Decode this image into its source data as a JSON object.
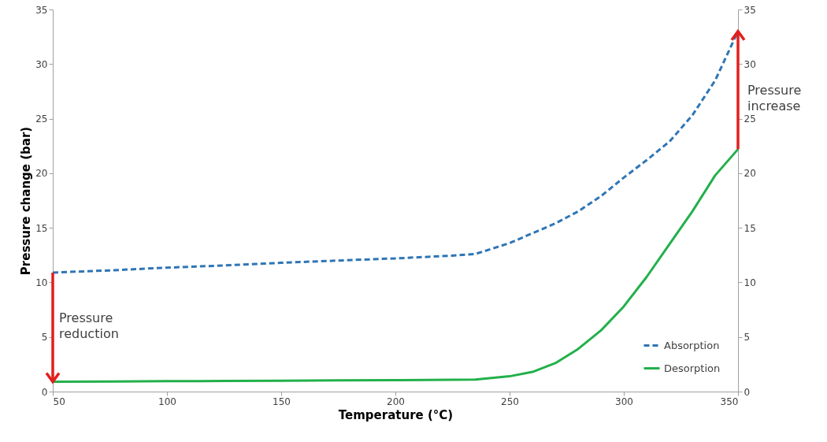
{
  "chart_data": {
    "type": "line",
    "xlabel": "Temperature (°C)",
    "ylabel": "Pressure change (bar)",
    "x": [
      50,
      75,
      100,
      125,
      150,
      175,
      200,
      225,
      235,
      250,
      260,
      270,
      280,
      290,
      300,
      310,
      320,
      330,
      340,
      350
    ],
    "series": [
      {
        "name": "Absorption",
        "color": "#2f75b5",
        "line_style": "dashed",
        "values": [
          10.9,
          11.1,
          11.35,
          11.55,
          11.8,
          12.0,
          12.2,
          12.45,
          12.6,
          13.6,
          14.5,
          15.4,
          16.5,
          17.9,
          19.6,
          21.2,
          22.9,
          25.3,
          28.5,
          33.0
        ]
      },
      {
        "name": "Desorption",
        "color": "#22b04b",
        "line_style": "solid",
        "values": [
          0.9,
          0.92,
          0.95,
          0.97,
          1.0,
          1.02,
          1.05,
          1.08,
          1.1,
          1.4,
          1.8,
          2.6,
          3.9,
          5.6,
          7.8,
          10.5,
          13.5,
          16.5,
          19.8,
          22.2
        ]
      }
    ],
    "xlim": [
      50,
      350
    ],
    "xticks": [
      50,
      100,
      150,
      200,
      250,
      300,
      350
    ],
    "ylim": [
      0,
      35
    ],
    "yticks": [
      0,
      5,
      10,
      15,
      20,
      25,
      30,
      35
    ],
    "y2lim": [
      0,
      35
    ],
    "y2ticks": [
      0,
      5,
      10,
      15,
      20,
      25,
      30,
      35
    ],
    "annotations": [
      "Pressure reduction",
      "Pressure increase"
    ],
    "grid": false,
    "legend": "bottom right",
    "marker": "none"
  }
}
